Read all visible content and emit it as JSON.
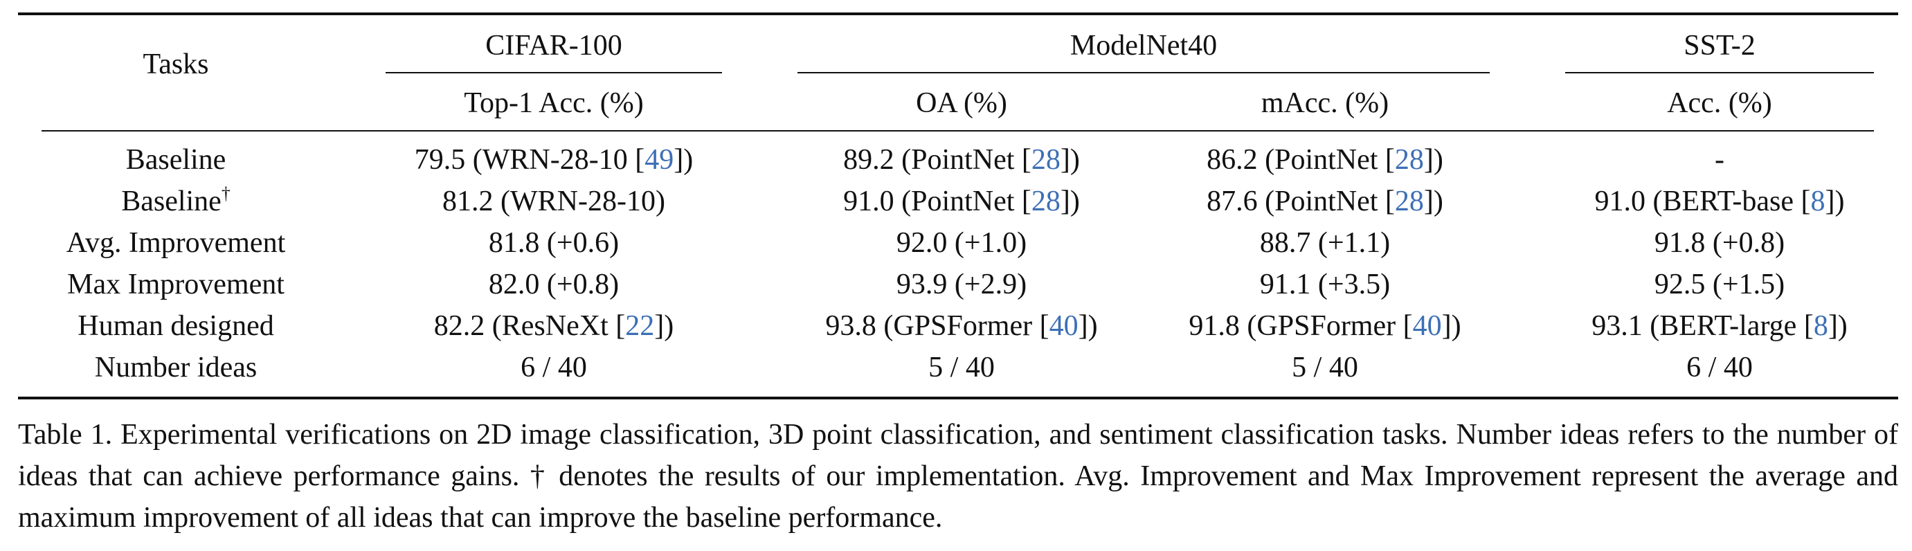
{
  "header": {
    "tasks_label": "Tasks",
    "groups": [
      {
        "name": "CIFAR-100",
        "metrics": [
          "Top-1 Acc. (%)"
        ]
      },
      {
        "name": "ModelNet40",
        "metrics": [
          "OA (%)",
          "mAcc. (%)"
        ]
      },
      {
        "name": "SST-2",
        "metrics": [
          "Acc. (%)"
        ]
      }
    ]
  },
  "rows": [
    {
      "task": "Baseline",
      "task_sup": "",
      "cells": [
        {
          "text": "79.5 (WRN-28-10 [",
          "cite": "49",
          "tail": "])"
        },
        {
          "text": "89.2 (PointNet [",
          "cite": "28",
          "tail": "])"
        },
        {
          "text": "86.2 (PointNet [",
          "cite": "28",
          "tail": "])"
        },
        {
          "text": "-",
          "cite": "",
          "tail": ""
        }
      ]
    },
    {
      "task": "Baseline",
      "task_sup": "†",
      "cells": [
        {
          "text": "81.2 (WRN-28-10)",
          "cite": "",
          "tail": ""
        },
        {
          "text": "91.0 (PointNet [",
          "cite": "28",
          "tail": "])"
        },
        {
          "text": "87.6 (PointNet [",
          "cite": "28",
          "tail": "])"
        },
        {
          "text": "91.0 (BERT-base [",
          "cite": "8",
          "tail": "])"
        }
      ]
    },
    {
      "task": "Avg. Improvement",
      "task_sup": "",
      "cells": [
        {
          "text": "81.8 (+0.6)",
          "cite": "",
          "tail": ""
        },
        {
          "text": "92.0 (+1.0)",
          "cite": "",
          "tail": ""
        },
        {
          "text": "88.7 (+1.1)",
          "cite": "",
          "tail": ""
        },
        {
          "text": "91.8 (+0.8)",
          "cite": "",
          "tail": ""
        }
      ]
    },
    {
      "task": "Max Improvement",
      "task_sup": "",
      "cells": [
        {
          "text": "82.0 (+0.8)",
          "cite": "",
          "tail": ""
        },
        {
          "text": "93.9 (+2.9)",
          "cite": "",
          "tail": ""
        },
        {
          "text": "91.1 (+3.5)",
          "cite": "",
          "tail": ""
        },
        {
          "text": "92.5 (+1.5)",
          "cite": "",
          "tail": ""
        }
      ]
    },
    {
      "task": "Human designed",
      "task_sup": "",
      "cells": [
        {
          "text": "82.2 (ResNeXt [",
          "cite": "22",
          "tail": "])"
        },
        {
          "text": "93.8 (GPSFormer [",
          "cite": "40",
          "tail": "])"
        },
        {
          "text": "91.8 (GPSFormer [",
          "cite": "40",
          "tail": "])"
        },
        {
          "text": "93.1 (BERT-large [",
          "cite": "8",
          "tail": "])"
        }
      ]
    },
    {
      "task": "Number ideas",
      "task_sup": "",
      "cells": [
        {
          "text": "6 / 40",
          "cite": "",
          "tail": ""
        },
        {
          "text": "5 / 40",
          "cite": "",
          "tail": ""
        },
        {
          "text": "5 / 40",
          "cite": "",
          "tail": ""
        },
        {
          "text": "6 / 40",
          "cite": "",
          "tail": ""
        }
      ]
    }
  ],
  "caption": "Table 1. Experimental verifications on 2D image classification, 3D point classification, and sentiment classification tasks. Number ideas refers to the number of ideas that can achieve performance gains. † denotes the results of our implementation. Avg. Improvement and Max Improvement represent the average and maximum improvement of all ideas that can improve the baseline performance."
}
